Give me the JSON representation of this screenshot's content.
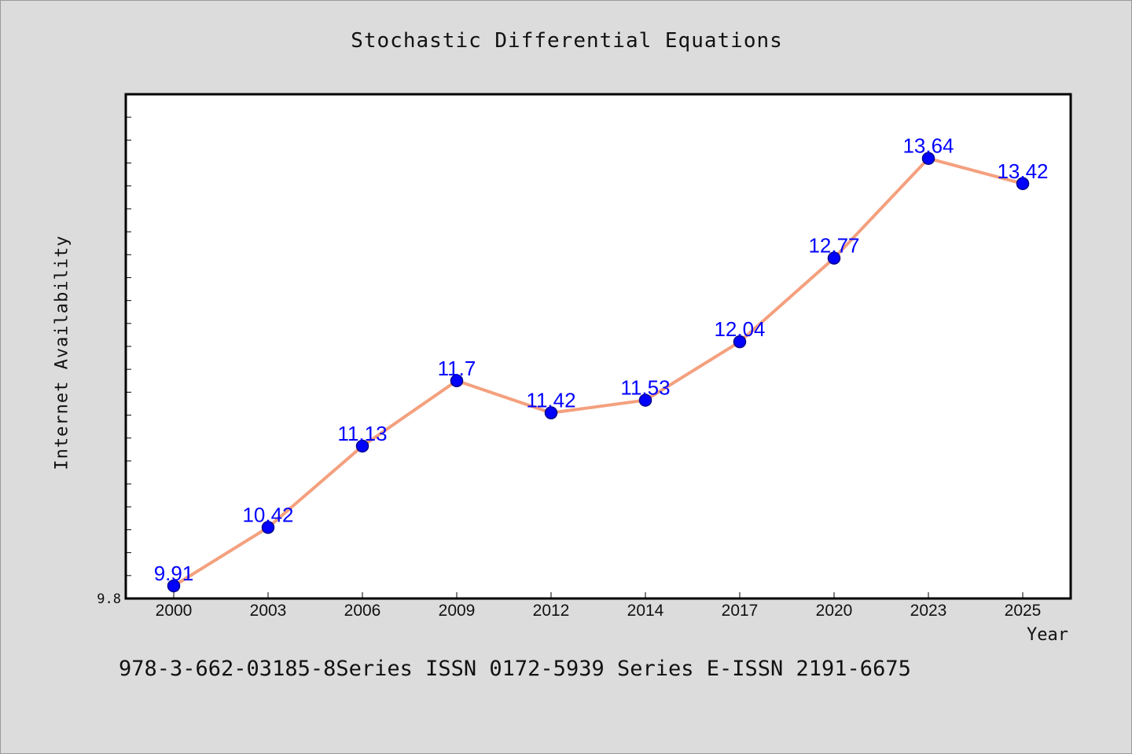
{
  "chart_data": {
    "type": "line",
    "title": "Stochastic Differential Equations",
    "xlabel": "Year",
    "ylabel": "Internet Availability",
    "categories": [
      "2000",
      "2003",
      "2006",
      "2009",
      "2012",
      "2014",
      "2017",
      "2020",
      "2023",
      "2025"
    ],
    "series": [
      {
        "values": [
          9.91,
          10.42,
          11.13,
          11.7,
          11.42,
          11.53,
          12.04,
          12.77,
          13.64,
          13.42
        ],
        "data_labels": [
          "9.91",
          "10.42",
          "11.13",
          "11.7",
          "11.42",
          "11.53",
          "12.04",
          "12.77",
          "13.64",
          "13.42"
        ]
      }
    ],
    "y_tick_labels": [
      "9.8"
    ],
    "ylim": [
      9.8,
      14.2
    ],
    "grid": false,
    "legend": "none",
    "colors": {
      "line": "#f4a07e",
      "marker": "#0000ff",
      "marker_edge": "#00008b",
      "data_label": "#0000ff",
      "plot_background": "#ffffff",
      "figure_background": "#dcdcdc"
    }
  },
  "footer": {
    "text": "978-3-662-03185-8Series ISSN 0172-5939 Series E-ISSN 2191-6675"
  }
}
